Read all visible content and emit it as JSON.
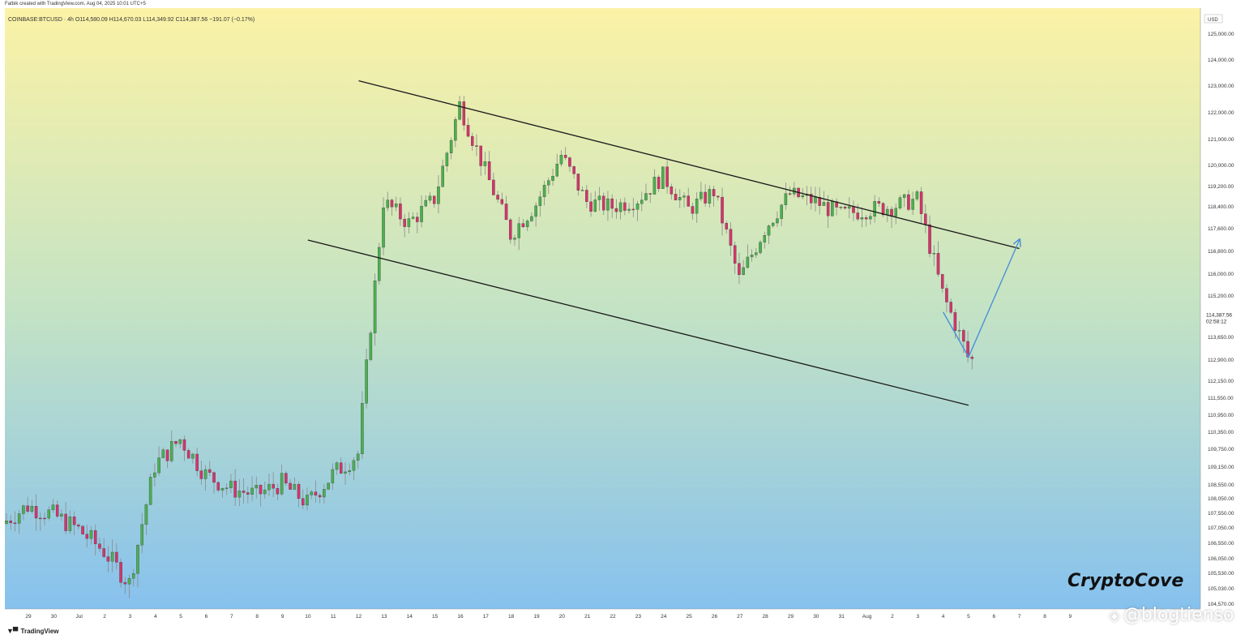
{
  "header": {
    "credit": "Fatbik created with TradingView.com, Aug 04, 2025 10:01 UTC+5",
    "symbol_line": "COINBASE:BTCUSD · 4h  O114,580.09  H114,670.03  L114,349.92  C114,387.56  −191.07 (−0.17%)"
  },
  "footer": {
    "brand": "TradingView"
  },
  "brand_text": "CryptoCove",
  "watermark": "@blogtienso",
  "colors": {
    "bull": "#4caf50",
    "bear": "#d6336c",
    "wick": "#8a8a8a",
    "channel": "#1a1a1a",
    "projection": "#4a90d9",
    "bg_top": "#fbf2a6",
    "bg_bottom": "#86c1ee"
  },
  "icons": {
    "logo": "tradingview-logo-icon",
    "watermark": "diamond-logo-icon"
  },
  "chart_data": {
    "type": "candlestick",
    "symbol": "COINBASE:BTCUSD",
    "timeframe": "4h",
    "currency_label": "USD",
    "y_ticks": [
      125000,
      124000,
      123000,
      122000,
      121000,
      120000,
      119200,
      118400,
      117600,
      116800,
      116000,
      115200,
      113650,
      112900,
      112150,
      111550,
      110950,
      110350,
      109750,
      109150,
      108550,
      108050,
      107550,
      107050,
      106550,
      106050,
      105530,
      105030,
      104570
    ],
    "y_tick_labels": [
      "125,000.00",
      "124,000.00",
      "123,000.00",
      "122,000.00",
      "121,000.00",
      "120,000.00",
      "119,200.00",
      "118,400.00",
      "117,600.00",
      "116,800.00",
      "116,000.00",
      "115,200.00",
      "113,650.00",
      "112,900.00",
      "112,150.00",
      "111,550.00",
      "110,950.00",
      "110,350.00",
      "109,750.00",
      "109,150.00",
      "108,550.00",
      "108,050.00",
      "107,550.00",
      "107,050.00",
      "106,550.00",
      "106,050.00",
      "105,530.00",
      "105,030.00",
      "104,570.00"
    ],
    "x_labels": [
      "29",
      "30",
      "Jul",
      "2",
      "3",
      "4",
      "5",
      "6",
      "7",
      "8",
      "9",
      "10",
      "11",
      "12",
      "13",
      "14",
      "15",
      "16",
      "17",
      "18",
      "19",
      "20",
      "21",
      "22",
      "23",
      "24",
      "25",
      "26",
      "27",
      "28",
      "29",
      "30",
      "31",
      "Aug",
      "2",
      "3",
      "4",
      "5",
      "6",
      "7",
      "8",
      "9"
    ],
    "candles_per_day": 6,
    "last_price": {
      "value": 114387.56,
      "label": "114,387.56",
      "countdown": "02:58:12"
    },
    "daily_path": [
      107200,
      107800,
      107500,
      107000,
      106300,
      105200,
      109200,
      110100,
      108900,
      108400,
      108200,
      108600,
      107900,
      108900,
      109600,
      118600,
      117800,
      118700,
      122300,
      119800,
      117400,
      118500,
      120400,
      118600,
      118400,
      118700,
      119600,
      118300,
      119000,
      115800,
      117600,
      118900,
      118600,
      118100,
      118300,
      118400,
      118700,
      115300,
      113000,
      112400,
      114390
    ],
    "channel_upper": {
      "start": [
        "Jul 13",
        123200
      ],
      "end": [
        "Aug 7",
        116900
      ]
    },
    "channel_lower": {
      "start": [
        "Jul 11",
        117200
      ],
      "end": [
        "Aug 5",
        111300
      ]
    },
    "projection": {
      "points": [
        [
          "Aug 4",
          114600
        ],
        [
          "Aug 5",
          113000
        ],
        [
          "Aug 7",
          117200
        ]
      ]
    },
    "title": "",
    "xlabel": "",
    "ylabel": ""
  }
}
